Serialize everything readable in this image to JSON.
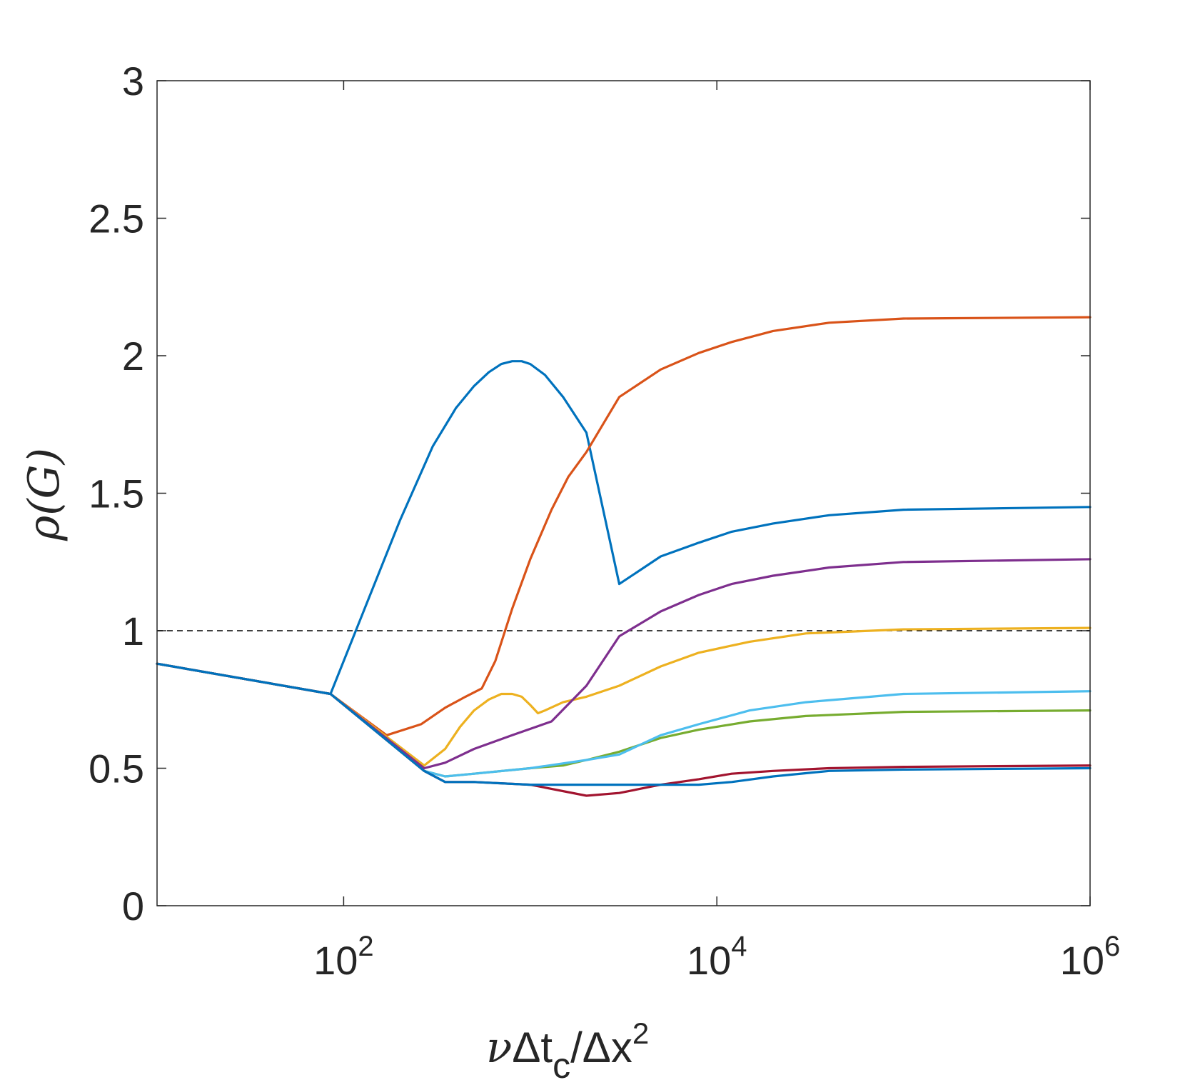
{
  "chart_data": {
    "type": "line",
    "xscale": "log",
    "xlim": [
      10,
      1000000
    ],
    "ylim": [
      0,
      3
    ],
    "xticks": [
      100,
      10000,
      1000000
    ],
    "xtick_labels": [
      {
        "base": "10",
        "exp": "2"
      },
      {
        "base": "10",
        "exp": "4"
      },
      {
        "base": "10",
        "exp": "6"
      }
    ],
    "yticks": [
      0,
      0.5,
      1,
      1.5,
      2,
      2.5,
      3
    ],
    "ytick_labels": [
      "0",
      "0.5",
      "1",
      "1.5",
      "2",
      "2.5",
      "3"
    ],
    "ylabel": "ρ(G)",
    "xlabel": {
      "nu": "ν",
      "delta1": "Δ",
      "t": "t",
      "sub": "c",
      "slash": "/",
      "delta2": "Δ",
      "x": "x",
      "sup": "2"
    },
    "grid": false,
    "legend": "none",
    "reference_line": {
      "y": 1,
      "style": "dashed",
      "color": "#000000"
    },
    "series": [
      {
        "color": "#0072BD",
        "x": [
          10,
          85,
          200,
          300,
          400,
          500,
          600,
          700,
          800,
          900,
          1000,
          1200,
          1500,
          2000,
          3000,
          5000,
          8000,
          12000,
          20000,
          40000,
          100000,
          1000000
        ],
        "y": [
          0.88,
          0.77,
          1.4,
          1.67,
          1.81,
          1.89,
          1.94,
          1.97,
          1.98,
          1.98,
          1.97,
          1.93,
          1.85,
          1.72,
          1.17,
          1.27,
          1.32,
          1.36,
          1.39,
          1.42,
          1.44,
          1.45
        ]
      },
      {
        "color": "#D95319",
        "x": [
          10,
          85,
          170,
          260,
          350,
          450,
          550,
          650,
          800,
          1000,
          1300,
          1600,
          2000,
          3000,
          5000,
          8000,
          12000,
          20000,
          40000,
          100000,
          1000000
        ],
        "y": [
          0.88,
          0.77,
          0.62,
          0.66,
          0.72,
          0.76,
          0.79,
          0.89,
          1.08,
          1.26,
          1.44,
          1.56,
          1.65,
          1.85,
          1.95,
          2.01,
          2.05,
          2.09,
          2.12,
          2.135,
          2.14
        ]
      },
      {
        "color": "#EDB120",
        "x": [
          10,
          85,
          270,
          350,
          420,
          500,
          600,
          700,
          800,
          900,
          1000,
          1100,
          1200,
          1500,
          2000,
          3000,
          5000,
          8000,
          15000,
          30000,
          100000,
          1000000
        ],
        "y": [
          0.88,
          0.77,
          0.51,
          0.57,
          0.65,
          0.71,
          0.75,
          0.77,
          0.77,
          0.76,
          0.73,
          0.7,
          0.71,
          0.74,
          0.76,
          0.8,
          0.87,
          0.92,
          0.96,
          0.99,
          1.005,
          1.01
        ]
      },
      {
        "color": "#7E2F8E",
        "x": [
          10,
          85,
          270,
          350,
          500,
          800,
          1300,
          2000,
          3000,
          5000,
          8000,
          12000,
          20000,
          40000,
          100000,
          1000000
        ],
        "y": [
          0.88,
          0.77,
          0.5,
          0.52,
          0.57,
          0.62,
          0.67,
          0.8,
          0.98,
          1.07,
          1.13,
          1.17,
          1.2,
          1.23,
          1.25,
          1.26
        ]
      },
      {
        "color": "#77AC30",
        "x": [
          10,
          85,
          270,
          350,
          500,
          1000,
          1500,
          2000,
          3000,
          5000,
          8000,
          15000,
          30000,
          100000,
          1000000
        ],
        "y": [
          0.88,
          0.77,
          0.49,
          0.47,
          0.48,
          0.5,
          0.51,
          0.53,
          0.56,
          0.61,
          0.64,
          0.67,
          0.69,
          0.705,
          0.71
        ]
      },
      {
        "color": "#4DBEEE",
        "x": [
          10,
          85,
          270,
          350,
          500,
          1000,
          2000,
          3000,
          5000,
          8000,
          15000,
          30000,
          100000,
          1000000
        ],
        "y": [
          0.88,
          0.77,
          0.49,
          0.47,
          0.48,
          0.5,
          0.53,
          0.55,
          0.62,
          0.66,
          0.71,
          0.74,
          0.77,
          0.78
        ]
      },
      {
        "color": "#A2142F",
        "x": [
          10,
          85,
          270,
          350,
          500,
          1000,
          2000,
          3000,
          5000,
          8000,
          12000,
          20000,
          40000,
          100000,
          1000000
        ],
        "y": [
          0.88,
          0.77,
          0.49,
          0.45,
          0.45,
          0.44,
          0.4,
          0.41,
          0.44,
          0.46,
          0.48,
          0.49,
          0.5,
          0.505,
          0.51
        ]
      },
      {
        "color": "#0072BD",
        "x": [
          10,
          85,
          270,
          350,
          500,
          1000,
          2000,
          3000,
          5000,
          8000,
          12000,
          20000,
          40000,
          100000,
          1000000
        ],
        "y": [
          0.88,
          0.77,
          0.49,
          0.45,
          0.45,
          0.44,
          0.44,
          0.44,
          0.44,
          0.44,
          0.45,
          0.47,
          0.49,
          0.495,
          0.5
        ]
      }
    ]
  }
}
